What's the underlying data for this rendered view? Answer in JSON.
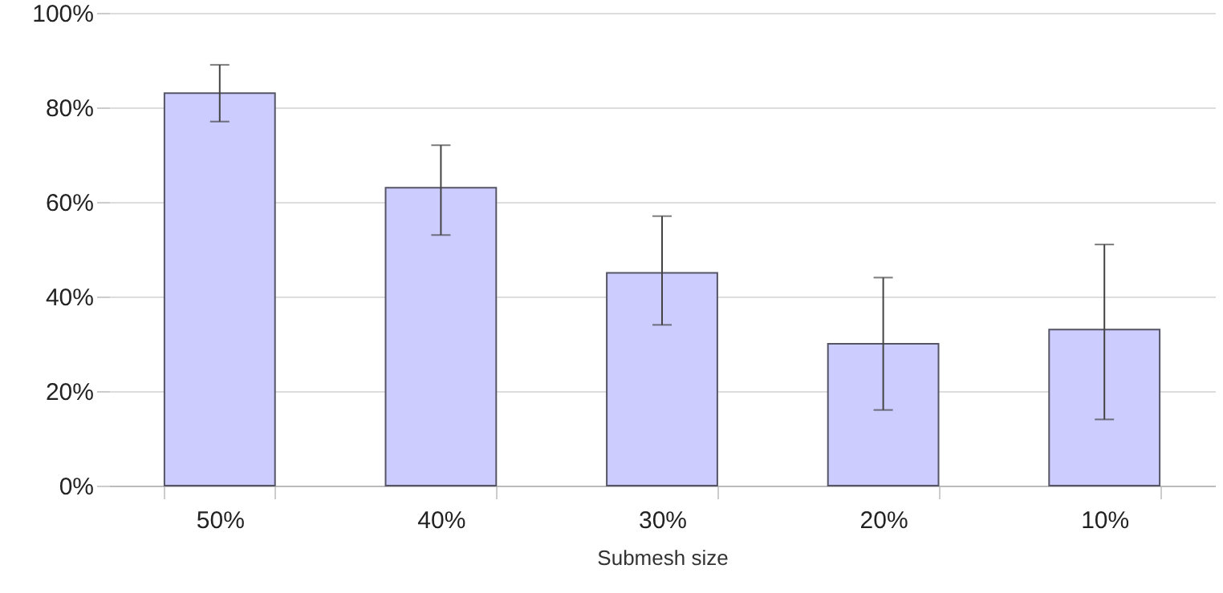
{
  "chart_data": {
    "type": "bar",
    "xlabel": "Submesh size",
    "categories": [
      "50%",
      "40%",
      "30%",
      "20%",
      "10%"
    ],
    "values": [
      83,
      63,
      45,
      30,
      33
    ],
    "errors": [
      [
        77,
        89
      ],
      [
        53,
        72
      ],
      [
        34,
        57
      ],
      [
        16,
        44
      ],
      [
        14,
        51
      ]
    ],
    "color": "#ccccff",
    "ylim": [
      0,
      100
    ],
    "yticks": [
      {
        "value": 0,
        "label": "0%"
      },
      {
        "value": 20,
        "label": "20%"
      },
      {
        "value": 40,
        "label": "40%"
      },
      {
        "value": 60,
        "label": "60%"
      },
      {
        "value": 80,
        "label": "80%"
      },
      {
        "value": 100,
        "label": "100%"
      }
    ],
    "grid": "y"
  }
}
